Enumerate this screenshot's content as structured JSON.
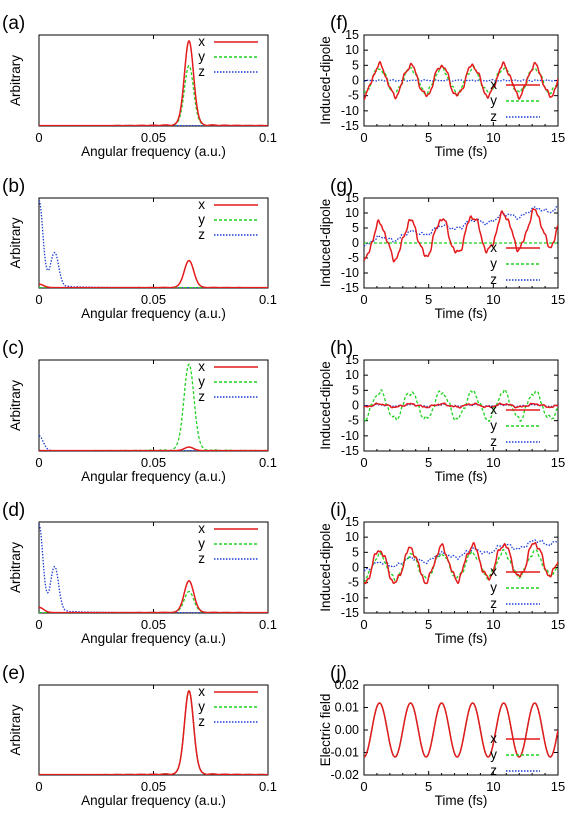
{
  "chart_data": [
    {
      "panel": "(a)",
      "type": "line",
      "xlabel": "Angular frequency (a.u.)",
      "ylabel": "Arbitrary",
      "xlim": [
        0,
        0.1
      ],
      "xticks": [
        "0",
        "0.05",
        "0.1"
      ],
      "legend_position": "top-right",
      "series": [
        {
          "name": "x",
          "color": "#e41a1c",
          "style": "solid",
          "peaks": [
            {
              "x": 0.0655,
              "h": 0.96,
              "w": 0.002
            }
          ],
          "ripple": 0.02
        },
        {
          "name": "y",
          "color": "#1fd21f",
          "style": "dashed",
          "peaks": [
            {
              "x": 0.0655,
              "h": 0.68,
              "w": 0.002
            }
          ],
          "ripple": 0.02
        },
        {
          "name": "z",
          "color": "#1f3fd8",
          "style": "dotted",
          "peaks": [],
          "ripple": 0.0
        }
      ]
    },
    {
      "panel": "(b)",
      "type": "line",
      "xlabel": "Angular frequency (a.u.)",
      "ylabel": "Arbitrary",
      "xlim": [
        0,
        0.1
      ],
      "xticks": [
        "0",
        "0.05",
        "0.1"
      ],
      "legend_position": "top-right",
      "series": [
        {
          "name": "x",
          "color": "#e41a1c",
          "style": "solid",
          "peaks": [
            {
              "x": 0.0655,
              "h": 0.31,
              "w": 0.0021
            },
            {
              "x": 0.0,
              "h": 0.04,
              "w": 0.002
            }
          ],
          "ripple": 0.02
        },
        {
          "name": "y",
          "color": "#1fd21f",
          "style": "dashed",
          "peaks": [],
          "ripple": 0.0
        },
        {
          "name": "z",
          "color": "#1f3fd8",
          "style": "dotted",
          "peaks": [
            {
              "x": 0.0,
              "h": 1.0,
              "w": 0.0017
            },
            {
              "x": 0.0068,
              "h": 0.4,
              "w": 0.0017
            }
          ],
          "ripple": 0.04
        }
      ]
    },
    {
      "panel": "(c)",
      "type": "line",
      "xlabel": "Angular frequency (a.u.)",
      "ylabel": "Arbitrary",
      "xlim": [
        0,
        0.1
      ],
      "xticks": [
        "0",
        "0.05",
        "0.1"
      ],
      "legend_position": "top-right",
      "series": [
        {
          "name": "x",
          "color": "#e41a1c",
          "style": "solid",
          "peaks": [
            {
              "x": 0.0655,
              "h": 0.04,
              "w": 0.002
            }
          ],
          "ripple": 0.0
        },
        {
          "name": "y",
          "color": "#1fd21f",
          "style": "dashed",
          "peaks": [
            {
              "x": 0.0655,
              "h": 0.98,
              "w": 0.0022
            }
          ],
          "ripple": 0.02
        },
        {
          "name": "z",
          "color": "#1f3fd8",
          "style": "dotted",
          "peaks": [
            {
              "x": 0.0,
              "h": 0.17,
              "w": 0.0018
            }
          ],
          "ripple": 0.0
        }
      ]
    },
    {
      "panel": "(d)",
      "type": "line",
      "xlabel": "Angular frequency (a.u.)",
      "ylabel": "Arbitrary",
      "xlim": [
        0,
        0.1
      ],
      "xticks": [
        "0",
        "0.05",
        "0.1"
      ],
      "legend_position": "top-right",
      "series": [
        {
          "name": "x",
          "color": "#e41a1c",
          "style": "solid",
          "peaks": [
            {
              "x": 0.0655,
              "h": 0.36,
              "w": 0.0021
            },
            {
              "x": 0.0,
              "h": 0.06,
              "w": 0.002
            }
          ],
          "ripple": 0.02
        },
        {
          "name": "y",
          "color": "#1fd21f",
          "style": "dashed",
          "peaks": [
            {
              "x": 0.0655,
              "h": 0.24,
              "w": 0.0021
            }
          ],
          "ripple": 0.02
        },
        {
          "name": "z",
          "color": "#1f3fd8",
          "style": "dotted",
          "peaks": [
            {
              "x": 0.0,
              "h": 1.0,
              "w": 0.0017
            },
            {
              "x": 0.0068,
              "h": 0.52,
              "w": 0.0017
            }
          ],
          "ripple": 0.04
        }
      ]
    },
    {
      "panel": "(e)",
      "type": "line",
      "xlabel": "Angular frequency (a.u.)",
      "ylabel": "Arbitrary",
      "xlim": [
        0,
        0.1
      ],
      "xticks": [
        "0",
        "0.05",
        "0.1"
      ],
      "legend_position": "top-right",
      "series": [
        {
          "name": "x",
          "color": "#e41a1c",
          "style": "solid",
          "peaks": [
            {
              "x": 0.0655,
              "h": 0.96,
              "w": 0.002
            }
          ],
          "ripple": 0.02
        },
        {
          "name": "y",
          "color": "#1fd21f",
          "style": "dashed",
          "peaks": [
            {
              "x": 0.0655,
              "h": 0.96,
              "w": 0.002
            }
          ],
          "ripple": 0.02
        },
        {
          "name": "z",
          "color": "#1f3fd8",
          "style": "dotted",
          "peaks": [
            {
              "x": 0.0655,
              "h": 0.96,
              "w": 0.002
            }
          ],
          "ripple": 0.02
        }
      ]
    },
    {
      "panel": "(f)",
      "type": "line",
      "xlabel": "Time (fs)",
      "ylabel": "Induced-dipole",
      "xlim": [
        0,
        15
      ],
      "ylim": [
        -15,
        15
      ],
      "xticks": [
        "0",
        "5",
        "10",
        "15"
      ],
      "yticks": [
        "15",
        "10",
        "5",
        "0",
        "-5",
        "-10",
        "-15"
      ],
      "legend_position": "right",
      "series": [
        {
          "name": "x",
          "color": "#e41a1c",
          "style": "solid",
          "amp": 5,
          "drift_rate": 0,
          "noise": 1.2
        },
        {
          "name": "y",
          "color": "#1fd21f",
          "style": "dashed",
          "amp": 4,
          "drift_rate": 0,
          "noise": 1.0
        },
        {
          "name": "z",
          "color": "#1f3fd8",
          "style": "dotted",
          "amp": 0,
          "drift_rate": 0,
          "noise": 0.3
        }
      ]
    },
    {
      "panel": "(g)",
      "type": "line",
      "xlabel": "Time (fs)",
      "ylabel": "Induced-dipole",
      "xlim": [
        0,
        15
      ],
      "ylim": [
        -15,
        15
      ],
      "xticks": [
        "0",
        "5",
        "10",
        "15"
      ],
      "yticks": [
        "15",
        "10",
        "5",
        "0",
        "-5",
        "-10",
        "-15"
      ],
      "legend_position": "right",
      "series": [
        {
          "name": "x",
          "color": "#e41a1c",
          "style": "solid",
          "amp": 6,
          "drift_rate": 0.35,
          "noise": 1.5
        },
        {
          "name": "y",
          "color": "#1fd21f",
          "style": "dashed",
          "amp": 0,
          "drift_rate": 0,
          "noise": 0.0
        },
        {
          "name": "z",
          "color": "#1f3fd8",
          "style": "dotted",
          "amp": 1,
          "drift_rate": 0.8,
          "noise": 0.8
        }
      ]
    },
    {
      "panel": "(h)",
      "type": "line",
      "xlabel": "Time (fs)",
      "ylabel": "Induced-dipole",
      "xlim": [
        0,
        15
      ],
      "ylim": [
        -15,
        15
      ],
      "xticks": [
        "0",
        "5",
        "10",
        "15"
      ],
      "yticks": [
        "15",
        "10",
        "5",
        "0",
        "-5",
        "-10",
        "-15"
      ],
      "legend_position": "right",
      "series": [
        {
          "name": "x",
          "color": "#e41a1c",
          "style": "solid",
          "amp": 0.5,
          "drift_rate": 0,
          "noise": 0.4
        },
        {
          "name": "y",
          "color": "#1fd21f",
          "style": "dashed",
          "amp": 4.5,
          "drift_rate": 0,
          "noise": 1.2
        },
        {
          "name": "z",
          "color": "#1f3fd8",
          "style": "dotted",
          "amp": 0.2,
          "drift_rate": 0,
          "noise": 0.3
        }
      ]
    },
    {
      "panel": "(i)",
      "type": "line",
      "xlabel": "Time (fs)",
      "ylabel": "Induced-dipole",
      "xlim": [
        0,
        15
      ],
      "ylim": [
        -15,
        15
      ],
      "xticks": [
        "0",
        "5",
        "10",
        "15"
      ],
      "yticks": [
        "15",
        "10",
        "5",
        "0",
        "-5",
        "-10",
        "-15"
      ],
      "legend_position": "right",
      "series": [
        {
          "name": "x",
          "color": "#e41a1c",
          "style": "solid",
          "amp": 5.5,
          "drift_rate": 0.2,
          "noise": 1.4
        },
        {
          "name": "y",
          "color": "#1fd21f",
          "style": "dashed",
          "amp": 4,
          "drift_rate": 0.1,
          "noise": 1.0
        },
        {
          "name": "z",
          "color": "#1f3fd8",
          "style": "dotted",
          "amp": 1,
          "drift_rate": 0.6,
          "noise": 0.7
        }
      ]
    },
    {
      "panel": "(j)",
      "type": "line",
      "xlabel": "Time (fs)",
      "ylabel": "Electric field",
      "xlim": [
        0,
        15
      ],
      "ylim": [
        -0.02,
        0.02
      ],
      "xticks": [
        "0",
        "5",
        "10",
        "15"
      ],
      "yticks": [
        "0.02",
        "0.01",
        "0.00",
        "-0.01",
        "-0.02"
      ],
      "legend_position": "right",
      "series": [
        {
          "name": "x",
          "color": "#e41a1c",
          "style": "solid",
          "amp": 0.012,
          "period_fs": 2.4
        },
        {
          "name": "y",
          "color": "#1fd21f",
          "style": "dashed",
          "amp": 0.012,
          "period_fs": 2.4
        },
        {
          "name": "z",
          "color": "#1f3fd8",
          "style": "dotted",
          "amp": 0.012,
          "period_fs": 2.4
        }
      ]
    }
  ]
}
